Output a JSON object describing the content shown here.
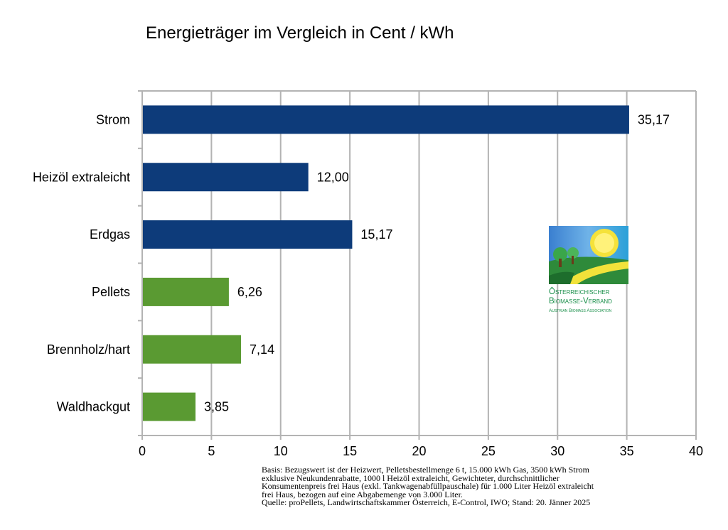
{
  "chart_data": {
    "type": "bar",
    "orientation": "horizontal",
    "title": "Energieträger im Vergleich in Cent / kWh",
    "categories": [
      "Strom",
      "Heizöl extraleicht",
      "Erdgas",
      "Pellets",
      "Brennholz/hart",
      "Waldhackgut"
    ],
    "values": [
      35.17,
      12.0,
      15.17,
      6.26,
      7.14,
      3.85
    ],
    "value_labels": [
      "35,17",
      "12,00",
      "15,17",
      "6,26",
      "7,14",
      "3,85"
    ],
    "bar_colors": [
      "#0d3b7a",
      "#0d3b7a",
      "#0d3b7a",
      "#5a9a32",
      "#5a9a32",
      "#5a9a32"
    ],
    "xlim": [
      0,
      40
    ],
    "xticks": [
      0,
      5,
      10,
      15,
      20,
      25,
      30,
      35,
      40
    ],
    "xlabel": "",
    "ylabel": "",
    "grid": "vertical"
  },
  "logo": {
    "line1": "Österreichischer",
    "line2": "Biomasse-Verband",
    "line3": "Austrian Biomass Association"
  },
  "footnote": {
    "lines": [
      "Basis: Bezugswert ist der Heizwert, Pelletsbestellmenge 6 t, 15.000 kWh Gas, 3500 kWh Strom",
      "exklusive Neukundenrabatte, 1000 l Heizöl extraleicht, Gewichteter, durchschnittlicher",
      "Konsumentenpreis frei Haus (exkl. Tankwagenabfüllpauschale) für 1.000 Liter Heizöl extraleicht",
      "frei Haus, bezogen auf eine Abgabemenge von 3.000 Liter.",
      "Quelle: proPellets, Landwirtschaftskammer Österreich, E-Control, IWO; Stand: 20. Jänner 2025"
    ]
  }
}
